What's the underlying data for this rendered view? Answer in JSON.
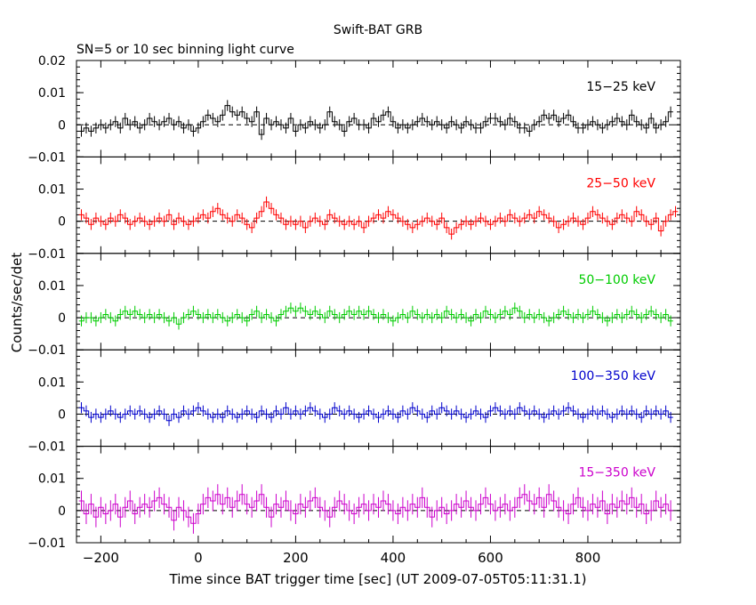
{
  "chart_data": {
    "type": "line",
    "title": "Swift-BAT GRB",
    "subtitle": "SN=5 or 10 sec binning light curve",
    "xlabel": "Time since BAT trigger time [sec] (UT 2009-07-05T05:11:31.1)",
    "ylabel": "Counts/sec/det",
    "xlim": [
      -250,
      990
    ],
    "xticks": [
      -200,
      0,
      200,
      400,
      600,
      800
    ],
    "x_tick_labels": [
      "−200",
      "0",
      "200",
      "400",
      "600",
      "800"
    ],
    "ylim": [
      -0.01,
      0.02
    ],
    "y_tick_values": [
      -0.01,
      0,
      0.01,
      0.02
    ],
    "y_tick_labels": [
      "−0.01",
      "0",
      "0.01",
      "0.02"
    ],
    "x_start": -240,
    "x_step": 10,
    "series": [
      {
        "name": "15−25 keV",
        "color": "#000000",
        "values": [
          -0.002,
          -0.001,
          -0.002,
          -0.001,
          0.0,
          -0.001,
          0.0,
          0.001,
          -0.001,
          0.002,
          0.0,
          0.001,
          -0.001,
          0.0,
          0.002,
          0.001,
          0.0,
          0.001,
          0.002,
          0.0,
          0.001,
          -0.001,
          0.0,
          -0.002,
          -0.001,
          0.001,
          0.003,
          0.002,
          0.001,
          0.003,
          0.006,
          0.004,
          0.003,
          0.004,
          0.002,
          0.001,
          0.004,
          -0.003,
          0.002,
          0.0,
          0.001,
          0.0,
          -0.001,
          0.002,
          -0.002,
          0.0,
          -0.001,
          0.001,
          0.0,
          -0.001,
          0.0,
          0.004,
          0.001,
          0.0,
          -0.002,
          0.001,
          0.002,
          0.0,
          0.0,
          -0.001,
          0.002,
          0.001,
          0.003,
          0.004,
          0.001,
          -0.001,
          0.0,
          -0.001,
          0.0,
          0.001,
          0.002,
          0.001,
          0.0,
          0.001,
          0.0,
          -0.001,
          0.001,
          0.0,
          -0.001,
          0.001,
          0.0,
          -0.001,
          -0.001,
          0.001,
          0.002,
          0.002,
          0.001,
          0.0,
          0.002,
          0.001,
          -0.001,
          -0.001,
          -0.002,
          0.0,
          0.001,
          0.003,
          0.002,
          0.003,
          0.001,
          0.002,
          0.003,
          0.001,
          -0.001,
          -0.001,
          0.0,
          0.001,
          0.0,
          -0.001,
          0.0,
          0.001,
          0.002,
          0.001,
          0.0,
          0.003,
          0.001,
          0.0,
          -0.001,
          0.002,
          -0.001,
          0.0,
          0.001,
          0.004
        ]
      },
      {
        "name": "25−50 keV",
        "color": "#ff0000",
        "values": [
          0.002,
          0.001,
          -0.001,
          0.001,
          0.0,
          -0.001,
          0.001,
          0.0,
          0.002,
          0.001,
          -0.001,
          0.0,
          0.001,
          0.0,
          -0.001,
          0.0,
          0.001,
          0.0,
          0.002,
          -0.001,
          0.001,
          0.0,
          -0.001,
          0.0,
          0.001,
          0.002,
          0.001,
          0.003,
          0.004,
          0.002,
          0.001,
          0.0,
          0.002,
          0.001,
          -0.001,
          -0.002,
          0.001,
          0.003,
          0.006,
          0.004,
          0.002,
          0.001,
          -0.001,
          0.0,
          -0.001,
          0.0,
          -0.002,
          0.0,
          0.001,
          0.0,
          -0.001,
          0.002,
          0.001,
          0.0,
          -0.001,
          0.0,
          -0.001,
          0.0,
          -0.002,
          0.0,
          0.001,
          0.002,
          0.001,
          0.003,
          0.002,
          0.001,
          0.0,
          -0.001,
          -0.002,
          -0.001,
          0.0,
          0.001,
          0.0,
          -0.001,
          0.001,
          -0.002,
          -0.004,
          -0.002,
          -0.001,
          0.0,
          -0.001,
          0.0,
          0.001,
          0.0,
          -0.001,
          0.0,
          0.001,
          0.0,
          0.002,
          0.001,
          0.0,
          0.001,
          0.002,
          0.001,
          0.003,
          0.002,
          0.001,
          0.0,
          -0.002,
          -0.001,
          0.0,
          0.001,
          0.0,
          -0.001,
          0.001,
          0.003,
          0.002,
          0.001,
          0.0,
          -0.001,
          0.001,
          0.002,
          0.001,
          0.0,
          0.003,
          0.002,
          0.0,
          -0.001,
          0.001,
          -0.003,
          0.0,
          0.002,
          0.003
        ]
      },
      {
        "name": "50−100 keV",
        "color": "#00cc00",
        "values": [
          -0.001,
          0.0,
          0.0,
          -0.001,
          0.0,
          0.001,
          0.0,
          -0.001,
          0.001,
          0.002,
          0.001,
          0.002,
          0.001,
          0.0,
          0.001,
          0.0,
          0.001,
          0.0,
          -0.001,
          0.0,
          -0.002,
          0.0,
          0.001,
          0.002,
          0.001,
          0.0,
          0.001,
          0.0,
          0.001,
          0.0,
          -0.001,
          0.0,
          0.001,
          0.0,
          -0.001,
          0.001,
          0.002,
          0.0,
          0.001,
          0.0,
          -0.001,
          0.001,
          0.002,
          0.003,
          0.002,
          0.003,
          0.002,
          0.001,
          0.002,
          0.001,
          0.0,
          0.002,
          0.001,
          0.0,
          0.001,
          0.002,
          0.001,
          0.002,
          0.001,
          0.002,
          0.001,
          0.0,
          0.001,
          0.0,
          -0.001,
          0.0,
          0.001,
          0.0,
          0.002,
          0.001,
          0.0,
          0.001,
          0.0,
          0.001,
          0.0,
          0.002,
          0.001,
          0.0,
          0.001,
          0.0,
          -0.001,
          0.001,
          0.0,
          0.002,
          0.001,
          0.0,
          0.001,
          0.002,
          0.001,
          0.003,
          0.002,
          0.0,
          0.001,
          0.0,
          0.001,
          0.0,
          -0.001,
          0.0,
          0.001,
          0.002,
          0.001,
          0.0,
          0.001,
          0.0,
          0.001,
          0.002,
          0.001,
          0.0,
          -0.001,
          0.0,
          0.001,
          0.0,
          0.001,
          0.002,
          0.001,
          0.0,
          0.001,
          0.002,
          0.001,
          0.0,
          0.001,
          -0.001
        ]
      },
      {
        "name": "100−350 keV",
        "color": "#0000cc",
        "values": [
          0.002,
          0.001,
          -0.001,
          0.0,
          -0.001,
          0.0,
          0.001,
          0.0,
          -0.001,
          0.0,
          0.001,
          0.0,
          0.001,
          0.0,
          -0.001,
          0.0,
          0.001,
          0.0,
          -0.002,
          0.0,
          -0.001,
          0.001,
          0.0,
          0.001,
          0.002,
          0.001,
          0.0,
          -0.001,
          0.0,
          -0.001,
          0.001,
          0.0,
          -0.001,
          0.0,
          0.001,
          0.0,
          -0.001,
          0.001,
          0.0,
          -0.001,
          0.001,
          0.0,
          0.002,
          0.0,
          0.001,
          0.0,
          0.001,
          0.002,
          0.001,
          0.0,
          -0.001,
          0.0,
          0.002,
          0.001,
          0.0,
          0.001,
          0.0,
          -0.001,
          0.0,
          0.001,
          0.0,
          -0.001,
          0.0,
          0.001,
          0.0,
          -0.001,
          0.001,
          0.0,
          0.002,
          0.001,
          0.0,
          -0.001,
          0.001,
          0.0,
          0.002,
          0.001,
          0.0,
          0.001,
          0.0,
          -0.001,
          0.0,
          0.001,
          0.0,
          -0.001,
          0.001,
          0.002,
          0.001,
          0.0,
          0.001,
          0.0,
          0.002,
          0.001,
          0.0,
          0.001,
          0.0,
          -0.001,
          0.0,
          0.001,
          0.0,
          0.001,
          0.002,
          0.001,
          0.0,
          -0.001,
          0.0,
          0.001,
          0.0,
          0.001,
          0.0,
          -0.001,
          0.0,
          0.001,
          0.0,
          0.001,
          0.0,
          -0.001,
          0.001,
          0.0,
          0.001,
          0.0,
          0.001,
          -0.001
        ]
      },
      {
        "name": "15−350 keV",
        "color": "#cc00cc",
        "values": [
          0.003,
          -0.001,
          0.002,
          -0.002,
          0.001,
          -0.001,
          0.0,
          0.002,
          -0.002,
          0.001,
          0.003,
          -0.001,
          0.001,
          0.002,
          0.001,
          0.003,
          0.004,
          0.002,
          0.001,
          -0.003,
          0.001,
          0.0,
          -0.002,
          -0.004,
          -0.001,
          0.002,
          0.004,
          0.003,
          0.005,
          0.002,
          0.004,
          0.001,
          0.003,
          0.005,
          0.002,
          0.001,
          0.003,
          0.005,
          0.001,
          -0.002,
          0.002,
          0.001,
          0.003,
          0.0,
          -0.001,
          0.002,
          0.001,
          0.003,
          0.004,
          0.001,
          0.0,
          -0.002,
          0.001,
          0.003,
          0.002,
          0.0,
          -0.001,
          0.001,
          0.002,
          0.0,
          0.002,
          0.001,
          0.003,
          0.002,
          0.0,
          -0.001,
          0.001,
          0.0,
          0.002,
          0.001,
          0.004,
          0.001,
          -0.002,
          0.0,
          0.001,
          -0.001,
          0.0,
          0.002,
          0.001,
          0.003,
          0.001,
          0.0,
          0.002,
          0.004,
          0.002,
          0.0,
          0.001,
          0.002,
          0.0,
          0.001,
          0.004,
          0.005,
          0.003,
          0.002,
          0.004,
          0.001,
          0.005,
          0.003,
          0.001,
          0.0,
          -0.001,
          0.002,
          0.004,
          0.001,
          0.0,
          0.002,
          0.001,
          0.003,
          -0.001,
          0.002,
          0.001,
          0.003,
          0.002,
          0.004,
          0.001,
          0.002,
          -0.001,
          0.0,
          0.003,
          0.001,
          0.002,
          0.0
        ]
      }
    ]
  }
}
